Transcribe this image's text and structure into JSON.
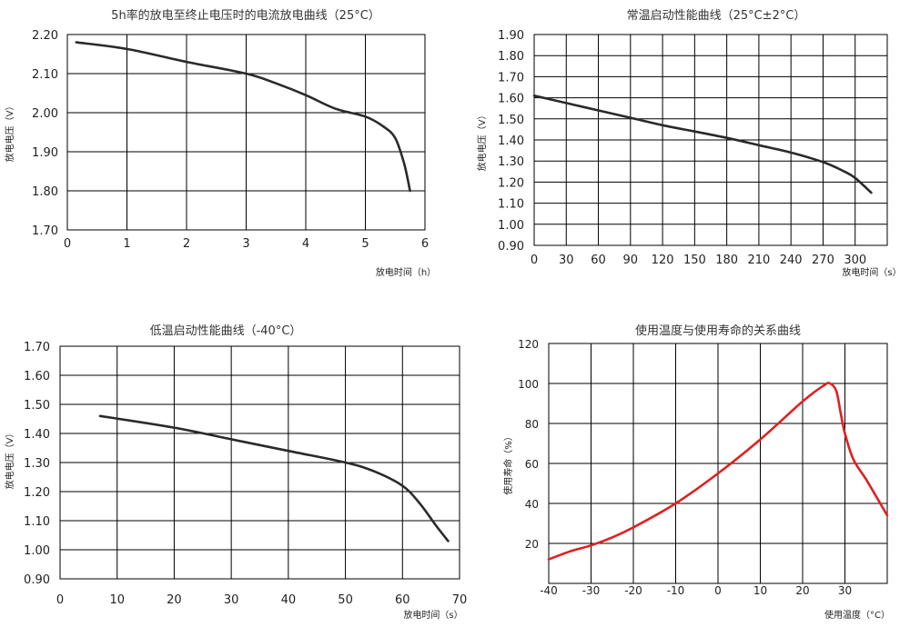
{
  "chart_data": [
    {
      "type": "line",
      "title": "5h率的放电至终止电压时的电流放电曲线（25°C）",
      "xlabel": "放电时间（h）",
      "ylabel": "放电电压（V）",
      "xlim": [
        0,
        6
      ],
      "ylim": [
        1.7,
        2.2
      ],
      "x_ticks": [
        "0",
        "1",
        "2",
        "3",
        "4",
        "5",
        "6"
      ],
      "y_ticks": [
        "1.70",
        "1.80",
        "1.90",
        "2.00",
        "2.10",
        "2.20"
      ],
      "series": [
        {
          "x": [
            0.15,
            1.0,
            2.0,
            3.0,
            3.5,
            4.0,
            4.5,
            5.0,
            5.3,
            5.5,
            5.65,
            5.75
          ],
          "y": [
            2.18,
            2.163,
            2.13,
            2.1,
            2.075,
            2.045,
            2.01,
            1.99,
            1.965,
            1.935,
            1.87,
            1.8
          ]
        }
      ],
      "line_color": "#2a2a2a"
    },
    {
      "type": "line",
      "title": "常温启动性能曲线（25°C±2°C）",
      "xlabel": "放电时间（s）",
      "ylabel": "放电电压（V）",
      "xlim": [
        0,
        330
      ],
      "ylim": [
        0.9,
        1.9
      ],
      "x_ticks": [
        "0",
        "30",
        "60",
        "90",
        "120",
        "150",
        "180",
        "210",
        "240",
        "270",
        "300"
      ],
      "y_ticks": [
        "0.90",
        "1.00",
        "1.10",
        "1.20",
        "1.30",
        "1.40",
        "1.50",
        "1.60",
        "1.70",
        "1.80",
        "1.90"
      ],
      "series": [
        {
          "x": [
            0,
            30,
            60,
            90,
            120,
            150,
            180,
            210,
            240,
            270,
            290,
            300,
            315
          ],
          "y": [
            1.61,
            1.575,
            1.54,
            1.505,
            1.47,
            1.44,
            1.41,
            1.375,
            1.34,
            1.295,
            1.25,
            1.22,
            1.15
          ]
        }
      ],
      "line_color": "#2a2a2a"
    },
    {
      "type": "line",
      "title": "低温启动性能曲线（-40°C）",
      "xlabel": "放电时间（s）",
      "ylabel": "放电电压（V）",
      "xlim": [
        0,
        70
      ],
      "ylim": [
        0.9,
        1.7
      ],
      "x_ticks": [
        "0",
        "10",
        "20",
        "30",
        "40",
        "50",
        "60",
        "70"
      ],
      "y_ticks": [
        "0.90",
        "1.00",
        "1.10",
        "1.20",
        "1.30",
        "1.40",
        "1.50",
        "1.60",
        "1.70"
      ],
      "series": [
        {
          "x": [
            7,
            20,
            30,
            40,
            50,
            55,
            60,
            63,
            66,
            68
          ],
          "y": [
            1.46,
            1.42,
            1.38,
            1.34,
            1.3,
            1.27,
            1.22,
            1.16,
            1.08,
            1.03
          ]
        }
      ],
      "line_color": "#2a2a2a"
    },
    {
      "type": "line",
      "title": "使用温度与使用寿命的关系曲线",
      "xlabel": "使用温度（°C）",
      "ylabel": "使用寿命（%）",
      "xlim": [
        -40,
        40
      ],
      "ylim": [
        0,
        120
      ],
      "x_ticks": [
        "-40",
        "-30",
        "-20",
        "-10",
        "0",
        "10",
        "20",
        "30"
      ],
      "y_ticks": [
        "20",
        "40",
        "60",
        "80",
        "100",
        "120"
      ],
      "series": [
        {
          "x": [
            -40,
            -35,
            -30,
            -25,
            -20,
            -10,
            0,
            10,
            20,
            25,
            26.5,
            28,
            29,
            30,
            32,
            35,
            40
          ],
          "y": [
            12,
            16,
            19,
            23,
            28,
            40,
            55,
            72,
            91,
            99,
            100,
            96,
            85,
            75,
            62,
            52,
            34
          ]
        }
      ],
      "line_color": "#e02020"
    }
  ]
}
